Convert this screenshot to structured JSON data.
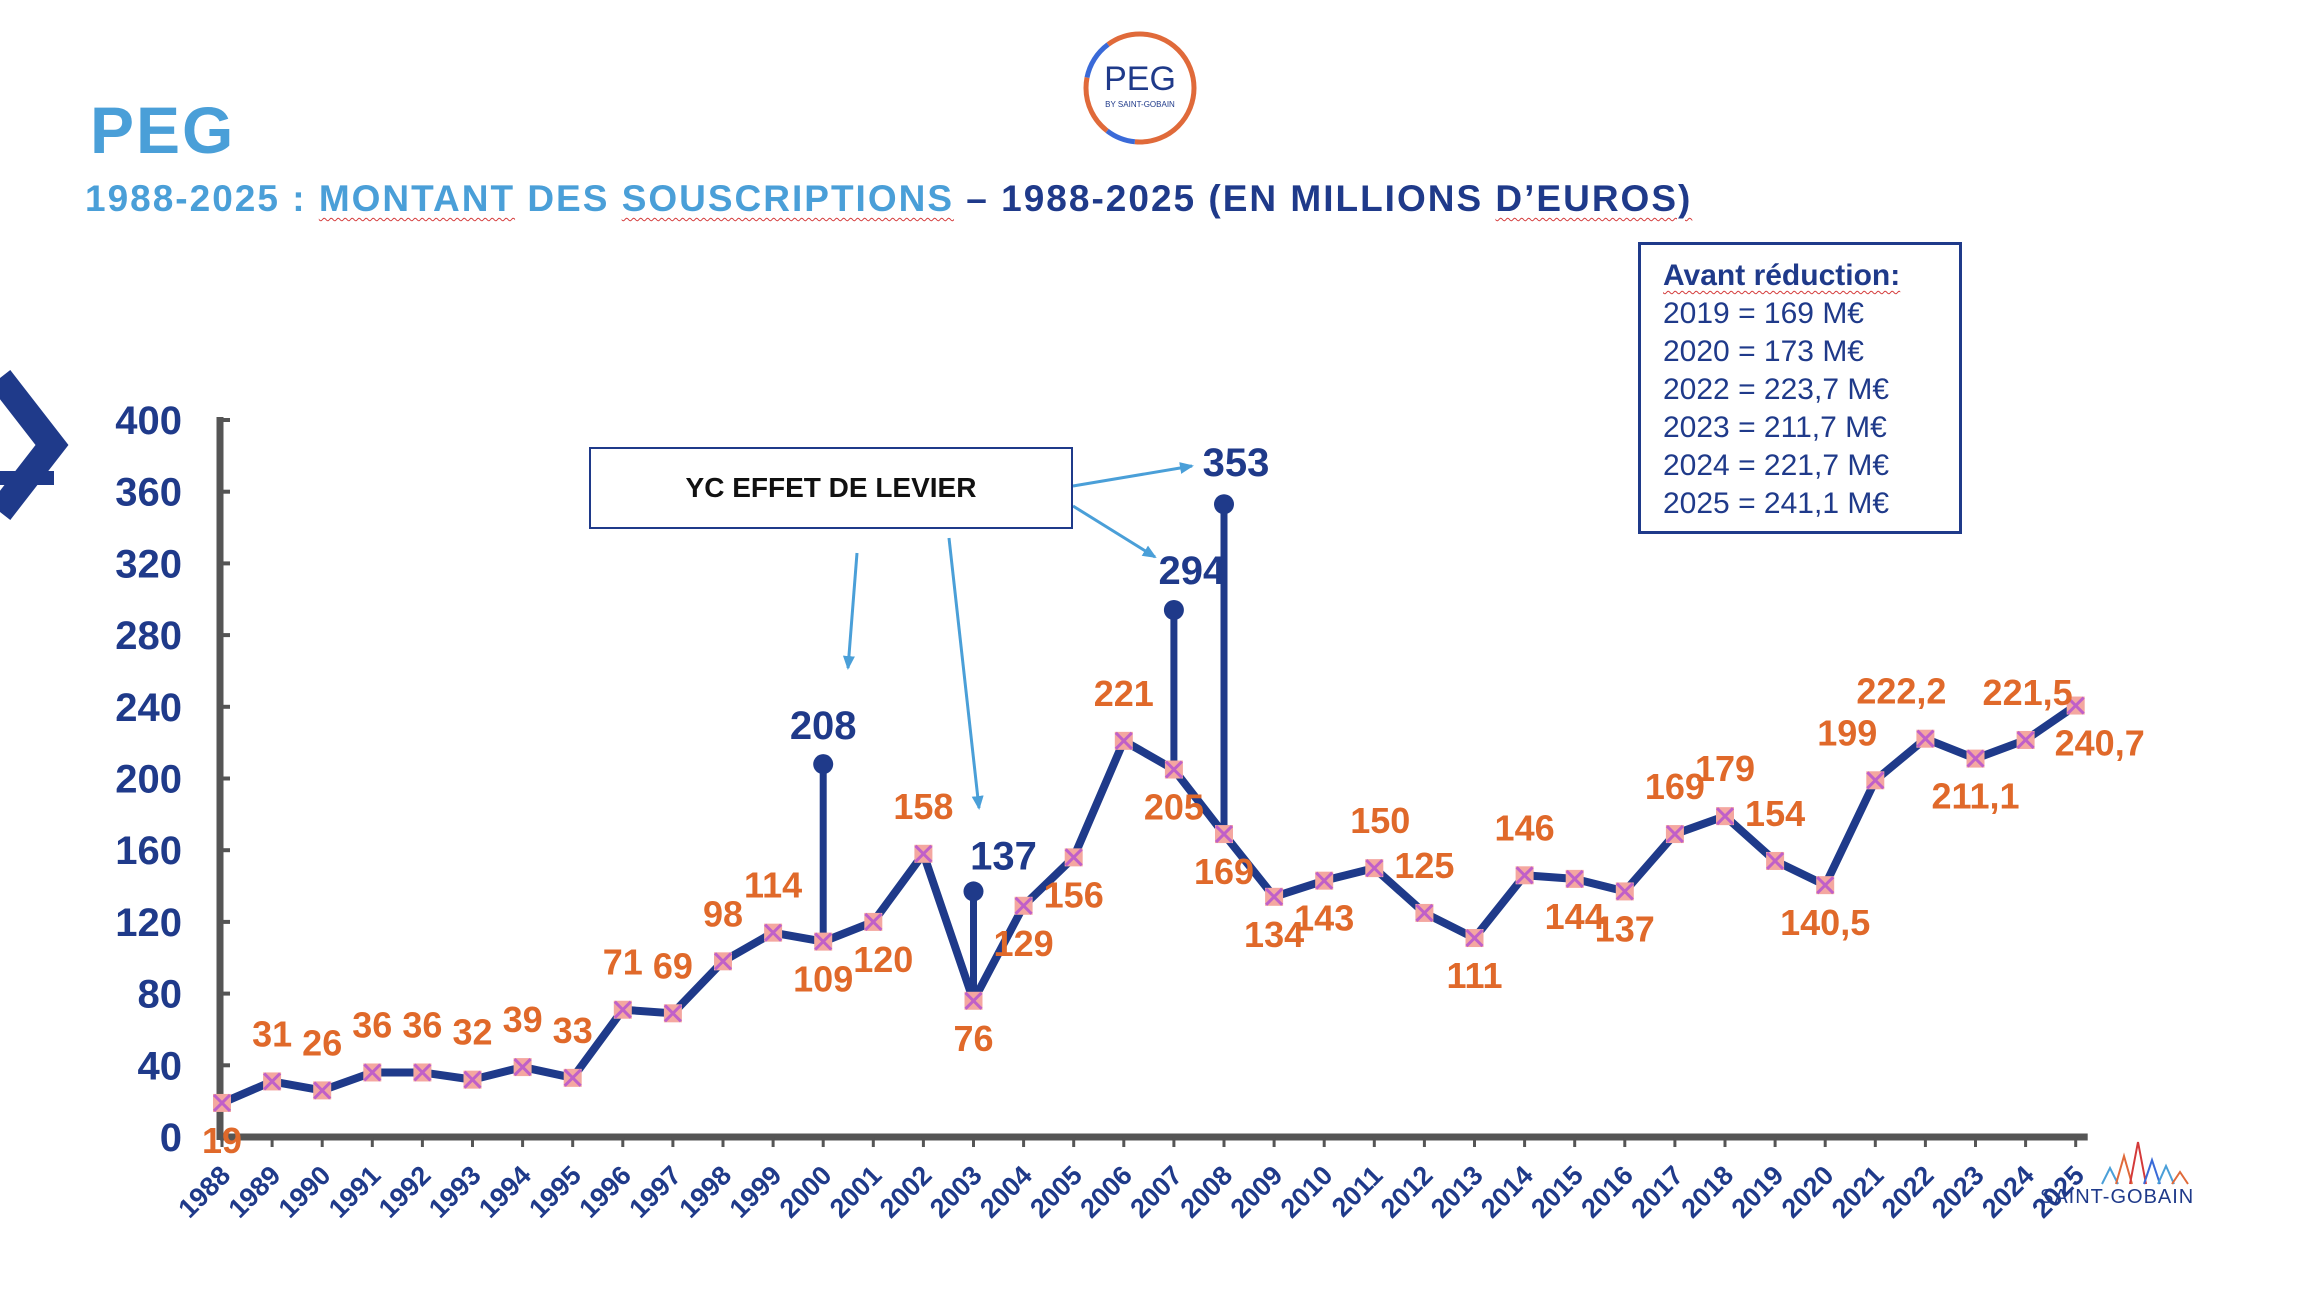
{
  "slide": {
    "brand_title": "PEG",
    "subtitle_part1": "1988-2025 : ",
    "subtitle_part2": "MONTANT",
    "subtitle_part3": " DES ",
    "subtitle_part4": "SOUSCRIPTIONS",
    "subtitle_part5": " – 1988-2025 (EN MILLIONS ",
    "subtitle_part6": "D’EUROS)",
    "logo_main": "PEG",
    "logo_sub": "BY SAINT-GOBAIN",
    "footer_logo": "SAINT-GOBAIN"
  },
  "note_box": {
    "title": "Avant réduction:",
    "lines": [
      "2019 = 169 M€",
      "2020 = 173 M€",
      "2022 = 223,7 M€",
      "2023 = 211,7 M€",
      "2024 = 221,7 M€",
      "2025 = 241,1 M€"
    ]
  },
  "callout": {
    "text": "YC EFFET DE LEVIER"
  },
  "colors": {
    "line": "#1f3a8a",
    "label_main": "#e0692a",
    "label_leverage": "#1f3a8a",
    "marker_fill": "#f4a7a0",
    "marker_cross": "#c060c8",
    "arrow": "#4a9fd8",
    "axis": "#555555"
  },
  "chart_data": {
    "type": "line",
    "title": "1988-2025 : MONTANT DES SOUSCRIPTIONS – 1988-2025 (EN MILLIONS D’EUROS)",
    "xlabel": "",
    "ylabel": "",
    "ylim": [
      0,
      400
    ],
    "yticks": [
      0,
      40,
      80,
      120,
      160,
      200,
      240,
      280,
      320,
      360,
      400
    ],
    "grid": false,
    "legend": "none",
    "categories": [
      "1988",
      "1989",
      "1990",
      "1991",
      "1992",
      "1993",
      "1994",
      "1995",
      "1996",
      "1997",
      "1998",
      "1999",
      "2000",
      "2001",
      "2002",
      "2003",
      "2004",
      "2005",
      "2006",
      "2007",
      "2008",
      "2009",
      "2010",
      "2011",
      "2012",
      "2013",
      "2014",
      "2015",
      "2016",
      "2017",
      "2018",
      "2019",
      "2020",
      "2021",
      "2022",
      "2023",
      "2024",
      "2025"
    ],
    "series": [
      {
        "values": [
          19,
          31,
          26,
          36,
          36,
          32,
          39,
          33,
          71,
          69,
          98,
          114,
          109,
          120,
          158,
          76,
          129,
          156,
          221,
          205,
          169,
          134,
          143,
          150,
          125,
          111,
          146,
          144,
          137,
          169,
          179,
          154,
          140.5,
          199,
          222.2,
          211.1,
          221.5,
          240.7
        ],
        "labels": [
          "19",
          "31",
          "26",
          "36",
          "36",
          "32",
          "39",
          "33",
          "71",
          "69",
          "98",
          "114",
          "109",
          "120",
          "158",
          "76",
          "129",
          "156",
          "221",
          "205",
          "169",
          "134",
          "143",
          "150",
          "125",
          "111",
          "146",
          "144",
          "137",
          "169",
          "179",
          "154",
          "140,5",
          "199",
          "222,2",
          "211,1",
          "221,5",
          "240,7"
        ]
      },
      {
        "values": [
          {
            "x": "2000",
            "y": 208,
            "label": "208"
          },
          {
            "x": "2003",
            "y": 137,
            "label": "137"
          },
          {
            "x": "2007",
            "y": 294,
            "label": "294"
          },
          {
            "x": "2008",
            "y": 353,
            "label": "353"
          }
        ]
      }
    ]
  }
}
